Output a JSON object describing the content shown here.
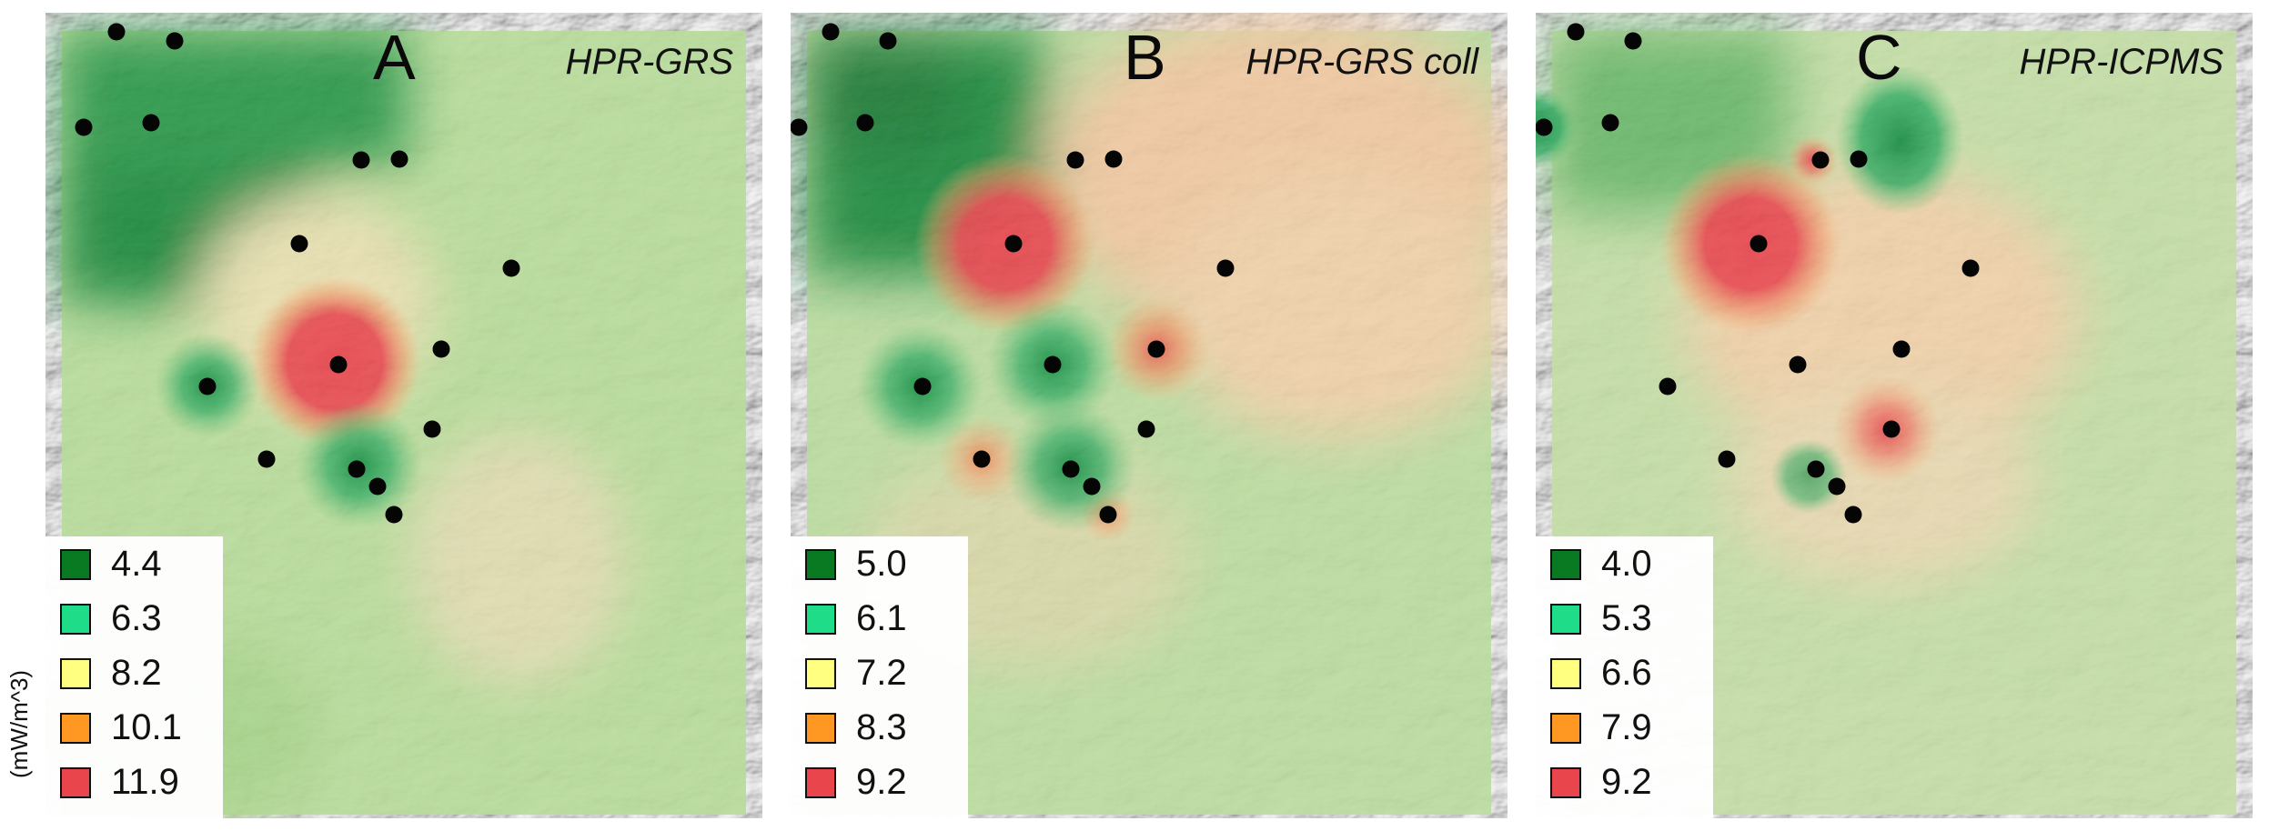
{
  "units": "(mW/m^3)",
  "colors": {
    "dark_green": "#0a7a22",
    "light_green": "#1fdc88",
    "yellow": "#ffff80",
    "orange": "#ff9822",
    "red": "#e8454c",
    "point": "#050505"
  },
  "panels": [
    {
      "letter": "A",
      "method": "HPR-GRS",
      "legend": [
        {
          "value": "4.4",
          "color": "#0a7a22"
        },
        {
          "value": "6.3",
          "color": "#1fdc88"
        },
        {
          "value": "8.2",
          "color": "#ffff80"
        },
        {
          "value": "10.1",
          "color": "#ff9822"
        },
        {
          "value": "11.9",
          "color": "#e8454c"
        }
      ]
    },
    {
      "letter": "B",
      "method": "HPR-GRS coll",
      "legend": [
        {
          "value": "5.0",
          "color": "#0a7a22"
        },
        {
          "value": "6.1",
          "color": "#1fdc88"
        },
        {
          "value": "7.2",
          "color": "#ffff80"
        },
        {
          "value": "8.3",
          "color": "#ff9822"
        },
        {
          "value": "9.2",
          "color": "#e8454c"
        }
      ]
    },
    {
      "letter": "C",
      "method": "HPR-ICPMS",
      "legend": [
        {
          "value": "4.0",
          "color": "#0a7a22"
        },
        {
          "value": "5.3",
          "color": "#1fdc88"
        },
        {
          "value": "6.6",
          "color": "#ffff80"
        },
        {
          "value": "7.9",
          "color": "#ff9822"
        },
        {
          "value": "9.2",
          "color": "#e8454c"
        }
      ]
    }
  ]
}
